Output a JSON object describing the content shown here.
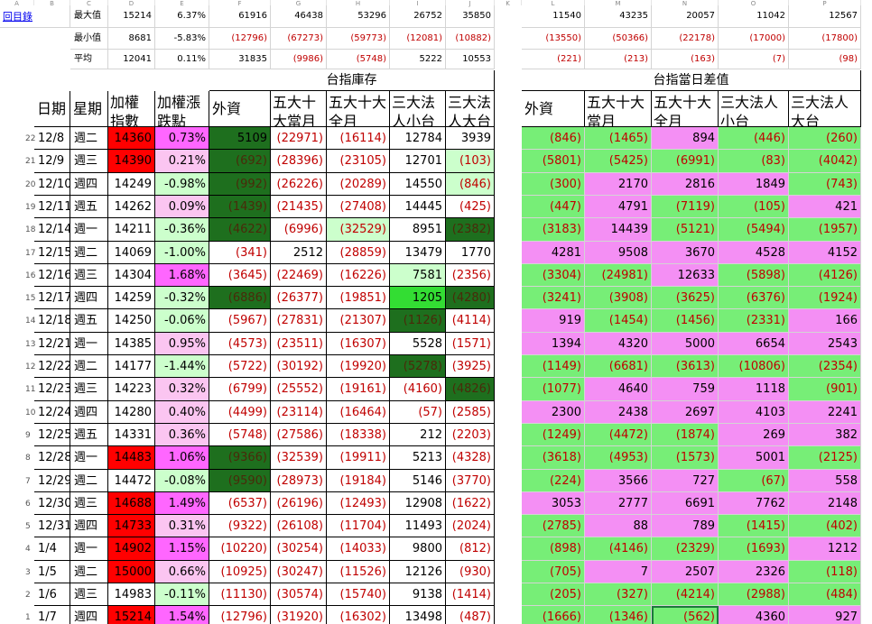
{
  "link": "回目錄",
  "colors": {
    "red": "#ff0000",
    "pink_light": "#fbc5f1",
    "pink": "#ff66ff",
    "green_dark": "#1e6f1e",
    "green_light": "#ccffcc",
    "green": "#33dd33",
    "green_bright": "#66ff66",
    "diff_green": "#77ee77",
    "diff_pink": "#f48ff4",
    "neg_text": "#c00000"
  },
  "stats": [
    {
      "label": "最大值",
      "a": "15214",
      "b": "6.37%",
      "f": "61916",
      "g": "46438",
      "h": "53296",
      "i": "26752",
      "j": "35850",
      "l": "11540",
      "m": "43235",
      "n": "20057",
      "o": "11042",
      "p": "12567"
    },
    {
      "label": "最小值",
      "a": "8681",
      "b": "-5.83%",
      "f": "(12796)",
      "g": "(67273)",
      "h": "(59773)",
      "i": "(12081)",
      "j": "(10882)",
      "l": "(13550)",
      "m": "(50366)",
      "n": "(22178)",
      "o": "(17000)",
      "p": "(17800)"
    },
    {
      "label": "平均",
      "a": "12041",
      "b": "0.11%",
      "f": "31835",
      "g": "(9986)",
      "h": "(5748)",
      "i": "5222",
      "j": "10553",
      "l": "(221)",
      "m": "(213)",
      "n": "(163)",
      "o": "(7)",
      "p": "(98)"
    }
  ],
  "section_titles": {
    "inventory": "台指庫存",
    "diff": "台指當日差值"
  },
  "headers": {
    "date": "日期",
    "weekday": "星期",
    "index": "加權指數",
    "change": "加權漲跌點",
    "foreign": "外資",
    "top_month": "五大十大當月",
    "top_all": "五大十大全月",
    "inst_small": "三大法人小台",
    "inst_big": "三大法人大台",
    "d_foreign": "外資",
    "d_top_month": "五大十大當月",
    "d_top_all": "五大十大全月",
    "d_inst_small": "三大法人小台",
    "d_inst_big": "三大法人大台"
  },
  "rows": [
    {
      "n": "22",
      "date": "12/8",
      "day": "週二",
      "idx": "14360",
      "chg": "0.73%",
      "f": "5109",
      "g": "(22971)",
      "h": "(16114)",
      "i": "12784",
      "j": "3939",
      "l": "(846)",
      "m": "(1465)",
      "nn": "894",
      "o": "(446)",
      "p": "(260)"
    },
    {
      "n": "21",
      "date": "12/9",
      "day": "週三",
      "idx": "14390",
      "chg": "0.21%",
      "f": "(692)",
      "g": "(28396)",
      "h": "(23105)",
      "i": "12701",
      "j": "(103)",
      "l": "(5801)",
      "m": "(5425)",
      "nn": "(6991)",
      "o": "(83)",
      "p": "(4042)"
    },
    {
      "n": "20",
      "date": "12/10",
      "day": "週四",
      "idx": "14249",
      "chg": "-0.98%",
      "f": "(992)",
      "g": "(26226)",
      "h": "(20289)",
      "i": "14550",
      "j": "(846)",
      "l": "(300)",
      "m": "2170",
      "nn": "2816",
      "o": "1849",
      "p": "(743)"
    },
    {
      "n": "19",
      "date": "12/11",
      "day": "週五",
      "idx": "14262",
      "chg": "0.09%",
      "f": "(1439)",
      "g": "(21435)",
      "h": "(27408)",
      "i": "14445",
      "j": "(425)",
      "l": "(447)",
      "m": "4791",
      "nn": "(7119)",
      "o": "(105)",
      "p": "421"
    },
    {
      "n": "18",
      "date": "12/14",
      "day": "週一",
      "idx": "14211",
      "chg": "-0.36%",
      "f": "(4622)",
      "g": "(6996)",
      "h": "(32529)",
      "i": "8951",
      "j": "(2382)",
      "l": "(3183)",
      "m": "14439",
      "nn": "(5121)",
      "o": "(5494)",
      "p": "(1957)"
    },
    {
      "n": "17",
      "date": "12/15",
      "day": "週二",
      "idx": "14069",
      "chg": "-1.00%",
      "f": "(341)",
      "g": "2512",
      "h": "(28859)",
      "i": "13479",
      "j": "1770",
      "l": "4281",
      "m": "9508",
      "nn": "3670",
      "o": "4528",
      "p": "4152"
    },
    {
      "n": "16",
      "date": "12/16",
      "day": "週三",
      "idx": "14304",
      "chg": "1.68%",
      "f": "(3645)",
      "g": "(22469)",
      "h": "(16226)",
      "i": "7581",
      "j": "(2356)",
      "l": "(3304)",
      "m": "(24981)",
      "nn": "12633",
      "o": "(5898)",
      "p": "(4126)"
    },
    {
      "n": "15",
      "date": "12/17",
      "day": "週四",
      "idx": "14259",
      "chg": "-0.32%",
      "f": "(6886)",
      "g": "(26377)",
      "h": "(19851)",
      "i": "1205",
      "j": "(4280)",
      "l": "(3241)",
      "m": "(3908)",
      "nn": "(3625)",
      "o": "(6376)",
      "p": "(1924)"
    },
    {
      "n": "14",
      "date": "12/18",
      "day": "週五",
      "idx": "14250",
      "chg": "-0.06%",
      "f": "(5967)",
      "g": "(27831)",
      "h": "(21307)",
      "i": "(1126)",
      "j": "(4114)",
      "l": "919",
      "m": "(1454)",
      "nn": "(1456)",
      "o": "(2331)",
      "p": "166"
    },
    {
      "n": "13",
      "date": "12/21",
      "day": "週一",
      "idx": "14385",
      "chg": "0.95%",
      "f": "(4573)",
      "g": "(23511)",
      "h": "(16307)",
      "i": "5528",
      "j": "(1571)",
      "l": "1394",
      "m": "4320",
      "nn": "5000",
      "o": "6654",
      "p": "2543"
    },
    {
      "n": "12",
      "date": "12/22",
      "day": "週二",
      "idx": "14177",
      "chg": "-1.44%",
      "f": "(5722)",
      "g": "(30192)",
      "h": "(19920)",
      "i": "(5278)",
      "j": "(3925)",
      "l": "(1149)",
      "m": "(6681)",
      "nn": "(3613)",
      "o": "(10806)",
      "p": "(2354)"
    },
    {
      "n": "11",
      "date": "12/23",
      "day": "週三",
      "idx": "14223",
      "chg": "0.32%",
      "f": "(6799)",
      "g": "(25552)",
      "h": "(19161)",
      "i": "(4160)",
      "j": "(4826)",
      "l": "(1077)",
      "m": "4640",
      "nn": "759",
      "o": "1118",
      "p": "(901)"
    },
    {
      "n": "10",
      "date": "12/24",
      "day": "週四",
      "idx": "14280",
      "chg": "0.40%",
      "f": "(4499)",
      "g": "(23114)",
      "h": "(16464)",
      "i": "(57)",
      "j": "(2585)",
      "l": "2300",
      "m": "2438",
      "nn": "2697",
      "o": "4103",
      "p": "2241"
    },
    {
      "n": "9",
      "date": "12/25",
      "day": "週五",
      "idx": "14331",
      "chg": "0.36%",
      "f": "(5748)",
      "g": "(27586)",
      "h": "(18338)",
      "i": "212",
      "j": "(2203)",
      "l": "(1249)",
      "m": "(4472)",
      "nn": "(1874)",
      "o": "269",
      "p": "382"
    },
    {
      "n": "8",
      "date": "12/28",
      "day": "週一",
      "idx": "14483",
      "chg": "1.06%",
      "f": "(9366)",
      "g": "(32539)",
      "h": "(19911)",
      "i": "5213",
      "j": "(4328)",
      "l": "(3618)",
      "m": "(4953)",
      "nn": "(1573)",
      "o": "5001",
      "p": "(2125)"
    },
    {
      "n": "7",
      "date": "12/29",
      "day": "週二",
      "idx": "14472",
      "chg": "-0.08%",
      "f": "(9590)",
      "g": "(28973)",
      "h": "(19184)",
      "i": "5146",
      "j": "(3770)",
      "l": "(224)",
      "m": "3566",
      "nn": "727",
      "o": "(67)",
      "p": "558"
    },
    {
      "n": "6",
      "date": "12/30",
      "day": "週三",
      "idx": "14688",
      "chg": "1.49%",
      "f": "(6537)",
      "g": "(26196)",
      "h": "(12493)",
      "i": "12908",
      "j": "(1622)",
      "l": "3053",
      "m": "2777",
      "nn": "6691",
      "o": "7762",
      "p": "2148"
    },
    {
      "n": "5",
      "date": "12/31",
      "day": "週四",
      "idx": "14733",
      "chg": "0.31%",
      "f": "(9322)",
      "g": "(26108)",
      "h": "(11704)",
      "i": "11493",
      "j": "(2024)",
      "l": "(2785)",
      "m": "88",
      "nn": "789",
      "o": "(1415)",
      "p": "(402)"
    },
    {
      "n": "4",
      "date": "1/4",
      "day": "週一",
      "idx": "14902",
      "chg": "1.15%",
      "f": "(10220)",
      "g": "(30254)",
      "h": "(14033)",
      "i": "9800",
      "j": "(812)",
      "l": "(898)",
      "m": "(4146)",
      "nn": "(2329)",
      "o": "(1693)",
      "p": "1212"
    },
    {
      "n": "3",
      "date": "1/5",
      "day": "週二",
      "idx": "15000",
      "chg": "0.66%",
      "f": "(10925)",
      "g": "(30247)",
      "h": "(11526)",
      "i": "12126",
      "j": "(930)",
      "l": "(705)",
      "m": "7",
      "nn": "2507",
      "o": "2326",
      "p": "(118)"
    },
    {
      "n": "2",
      "date": "1/6",
      "day": "週三",
      "idx": "14983",
      "chg": "-0.11%",
      "f": "(11130)",
      "g": "(30574)",
      "h": "(15740)",
      "i": "9138",
      "j": "(1414)",
      "l": "(205)",
      "m": "(327)",
      "nn": "(4214)",
      "o": "(2988)",
      "p": "(484)"
    },
    {
      "n": "1",
      "date": "1/7",
      "day": "週四",
      "idx": "15214",
      "chg": "1.54%",
      "f": "(12796)",
      "g": "(31920)",
      "h": "(16302)",
      "i": "13498",
      "j": "(487)",
      "l": "(1666)",
      "m": "(1346)",
      "nn": "(562)",
      "o": "4360",
      "p": "927"
    }
  ],
  "fills": {
    "idx": [
      "red",
      "red",
      "",
      "",
      "",
      "",
      "",
      "",
      "",
      "",
      "",
      "",
      "",
      "",
      "red",
      "",
      "red",
      "red",
      "red",
      "red",
      "",
      "red"
    ],
    "chg": [
      "pink",
      "pink_light",
      "green_light",
      "pink_light",
      "green_light",
      "green_light",
      "pink",
      "green_light",
      "green_light",
      "pink_light",
      "green_light",
      "pink_light",
      "pink_light",
      "pink_light",
      "pink",
      "green_light",
      "pink",
      "pink_light",
      "pink",
      "pink_light",
      "green_light",
      "pink"
    ],
    "f": [
      "green_dark",
      "green_dark",
      "green_dark",
      "green_dark",
      "green_dark",
      "",
      "",
      "green_dark",
      "",
      "",
      "",
      "",
      "",
      "",
      "green_dark",
      "green_dark",
      "",
      "",
      "",
      "",
      "",
      ""
    ],
    "j": [
      "",
      "green_light",
      "green_light",
      "",
      "green_dark",
      "",
      "",
      "green_dark",
      "",
      "",
      "",
      "green_dark",
      "",
      "",
      "",
      "",
      "",
      "",
      "",
      "",
      "",
      ""
    ],
    "i": [
      "",
      "",
      "",
      "",
      "",
      "",
      "green_light",
      "green",
      "green_dark",
      "",
      "green_dark",
      "",
      "",
      "",
      "",
      "",
      "",
      "",
      "",
      "",
      "",
      ""
    ],
    "h": [
      "",
      "",
      "",
      "",
      "green_light",
      "",
      "",
      "",
      "",
      "",
      "",
      "",
      "",
      "",
      "",
      "",
      "",
      "",
      "",
      "",
      "",
      ""
    ],
    "diff_l": [
      "g",
      "g",
      "g",
      "g",
      "g",
      "p",
      "g",
      "g",
      "p",
      "p",
      "g",
      "g",
      "p",
      "g",
      "g",
      "g",
      "p",
      "g",
      "g",
      "g",
      "g",
      "g"
    ],
    "diff_m": [
      "g",
      "g",
      "p",
      "p",
      "p",
      "p",
      "g",
      "g",
      "g",
      "p",
      "g",
      "p",
      "p",
      "g",
      "g",
      "p",
      "p",
      "p",
      "g",
      "p",
      "g",
      "g"
    ],
    "diff_n": [
      "p",
      "g",
      "p",
      "g",
      "g",
      "p",
      "p",
      "g",
      "g",
      "p",
      "g",
      "p",
      "p",
      "g",
      "g",
      "p",
      "p",
      "p",
      "g",
      "p",
      "g",
      "g"
    ],
    "diff_o": [
      "g",
      "g",
      "p",
      "g",
      "g",
      "p",
      "g",
      "g",
      "g",
      "p",
      "g",
      "p",
      "p",
      "p",
      "p",
      "g",
      "p",
      "g",
      "g",
      "p",
      "g",
      "p"
    ],
    "diff_p": [
      "g",
      "g",
      "g",
      "p",
      "g",
      "p",
      "g",
      "g",
      "p",
      "p",
      "g",
      "g",
      "p",
      "p",
      "g",
      "p",
      "p",
      "g",
      "p",
      "g",
      "g",
      "p"
    ]
  }
}
